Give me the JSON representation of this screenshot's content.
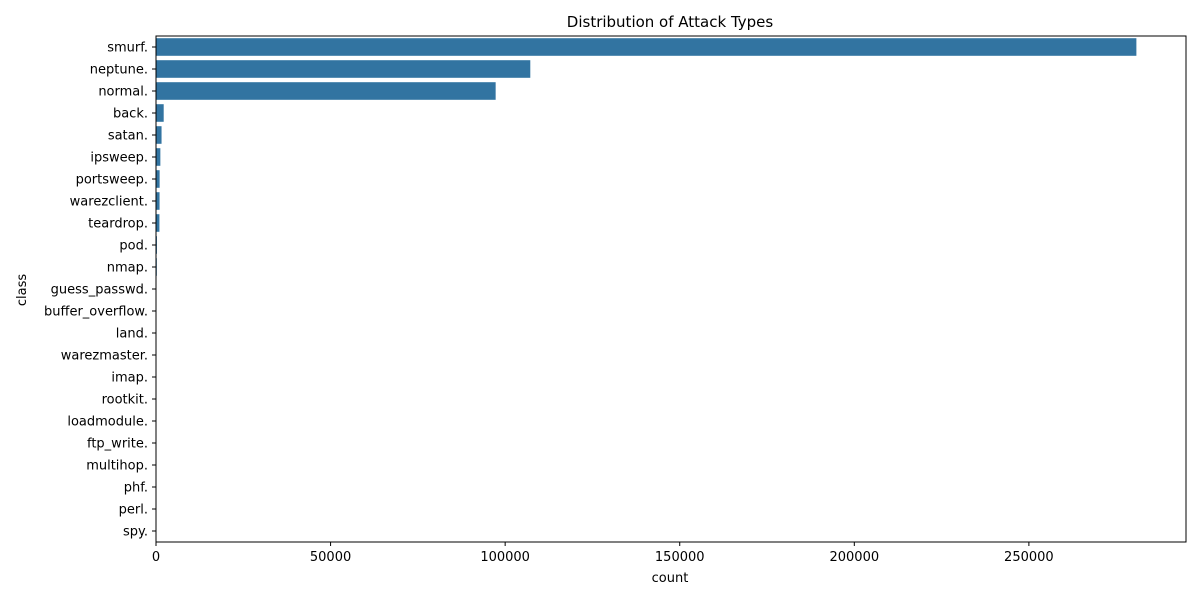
{
  "chart_data": {
    "type": "bar",
    "orientation": "horizontal",
    "title": "Distribution of Attack Types",
    "xlabel": "count",
    "ylabel": "class",
    "categories": [
      "smurf.",
      "neptune.",
      "normal.",
      "back.",
      "satan.",
      "ipsweep.",
      "portsweep.",
      "warezclient.",
      "teardrop.",
      "pod.",
      "nmap.",
      "guess_passwd.",
      "buffer_overflow.",
      "land.",
      "warezmaster.",
      "imap.",
      "rootkit.",
      "loadmodule.",
      "ftp_write.",
      "multihop.",
      "phf.",
      "perl.",
      "spy."
    ],
    "values": [
      280790,
      107201,
      97278,
      2203,
      1589,
      1247,
      1040,
      1020,
      979,
      264,
      231,
      53,
      30,
      21,
      20,
      12,
      10,
      9,
      8,
      7,
      4,
      3,
      2
    ],
    "xlim": [
      0,
      295000
    ],
    "xticks": [
      0,
      50000,
      100000,
      150000,
      200000,
      250000
    ],
    "xtick_labels": [
      "0",
      "50000",
      "100000",
      "150000",
      "200000",
      "250000"
    ],
    "bar_color": "#3274a1",
    "grid": false
  }
}
